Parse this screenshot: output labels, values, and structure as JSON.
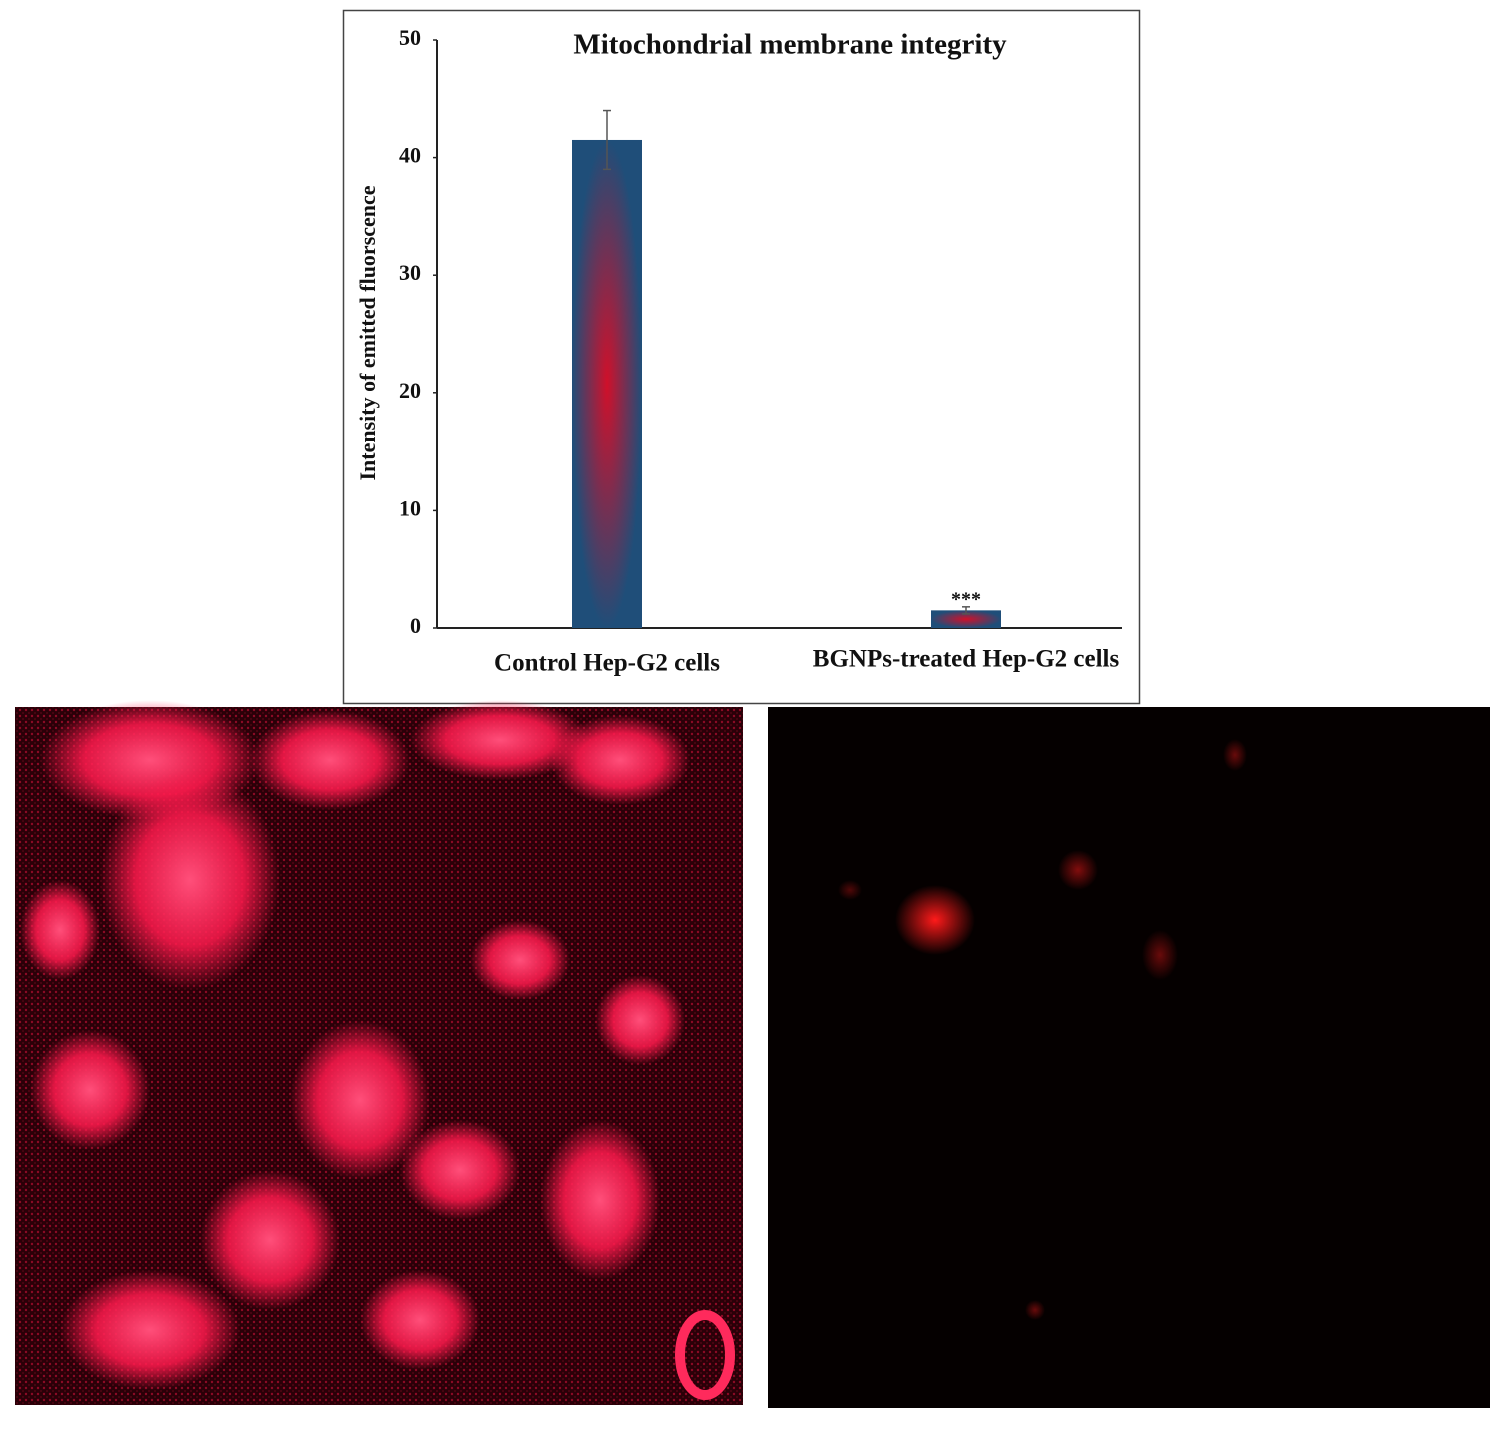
{
  "chart_data": {
    "type": "bar",
    "title": "Mitochondrial membrane integrity",
    "y_label": "Intensity of emitted fluorscence",
    "categories": [
      "Control Hep-G2 cells",
      "BGNPs-treated Hep-G2 cells"
    ],
    "values": [
      41.5,
      1.5
    ],
    "errors": [
      2.5,
      0.3
    ],
    "value_annotations": [
      null,
      "***"
    ],
    "colors": [
      "#1f4e79",
      "#d0102a"
    ],
    "ylim": [
      0,
      50
    ],
    "yticks": [
      0,
      10,
      20,
      30,
      40,
      50
    ],
    "grid": false
  }
}
